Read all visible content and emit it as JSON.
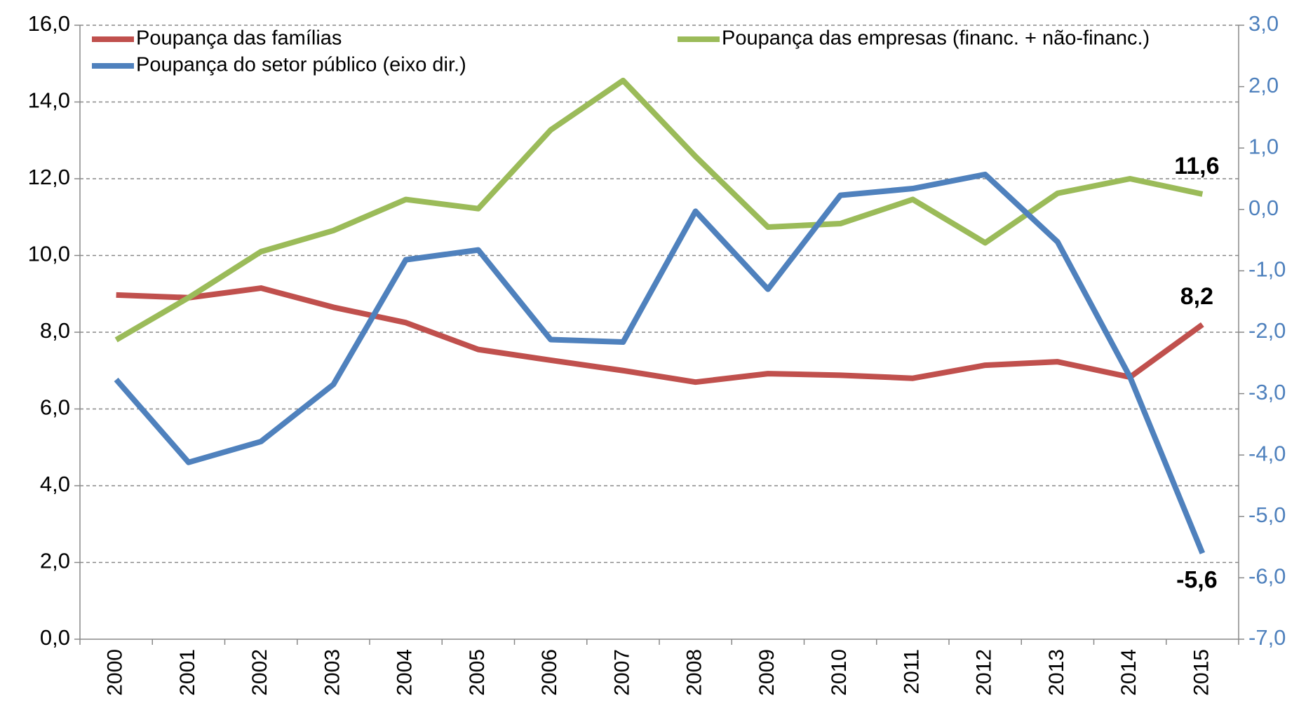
{
  "chart_data": {
    "type": "line",
    "categories": [
      "2000",
      "2001",
      "2002",
      "2003",
      "2004",
      "2005",
      "2006",
      "2007",
      "2008",
      "2009",
      "2010",
      "2011",
      "2012",
      "2013",
      "2014",
      "2015"
    ],
    "series": [
      {
        "name": "Poupança das famílias",
        "color": "#c0504d",
        "values": [
          8.97,
          8.9,
          9.15,
          8.65,
          8.25,
          7.55,
          7.27,
          7.0,
          6.7,
          6.92,
          6.88,
          6.8,
          7.14,
          7.23,
          6.83,
          8.2
        ],
        "value_labels": [
          null,
          null,
          null,
          null,
          null,
          null,
          null,
          null,
          null,
          null,
          null,
          null,
          null,
          null,
          null,
          "8,2"
        ]
      },
      {
        "name": "Poupança das empresas (financ. + não-financ.)",
        "color": "#9bbb59",
        "values": [
          7.8,
          8.9,
          10.1,
          10.65,
          11.46,
          11.22,
          13.27,
          14.56,
          12.58,
          10.74,
          10.83,
          11.46,
          10.33,
          11.62,
          12.0,
          11.6
        ],
        "value_labels": [
          null,
          null,
          null,
          null,
          null,
          null,
          null,
          null,
          null,
          null,
          null,
          null,
          null,
          null,
          null,
          "11,6"
        ]
      },
      {
        "name": "Poupança do setor público (eixo dir.)",
        "color": "#4f81bd",
        "axis": "y2",
        "values": [
          -2.77,
          -4.12,
          -3.78,
          -2.85,
          -0.82,
          -0.66,
          -2.12,
          -2.16,
          -0.03,
          -1.3,
          0.23,
          0.34,
          0.57,
          -0.53,
          -2.73,
          -5.6
        ],
        "value_labels": [
          null,
          null,
          null,
          null,
          null,
          null,
          null,
          null,
          null,
          null,
          null,
          null,
          null,
          null,
          null,
          "-5,6"
        ]
      }
    ],
    "ylim": [
      0,
      16
    ],
    "yticks": [
      {
        "value": 0,
        "label": "0,0"
      },
      {
        "value": 2,
        "label": "2,0"
      },
      {
        "value": 4,
        "label": "4,0"
      },
      {
        "value": 6,
        "label": "6,0"
      },
      {
        "value": 8,
        "label": "8,0"
      },
      {
        "value": 10,
        "label": "10,0"
      },
      {
        "value": 12,
        "label": "12,0"
      },
      {
        "value": 14,
        "label": "14,0"
      },
      {
        "value": 16,
        "label": "16,0"
      }
    ],
    "y2lim": [
      -7,
      3
    ],
    "y2ticks": [
      {
        "value": -7,
        "label": "-7,0"
      },
      {
        "value": -6,
        "label": "-6,0"
      },
      {
        "value": -5,
        "label": "-5,0"
      },
      {
        "value": -4,
        "label": "-4,0"
      },
      {
        "value": -3,
        "label": "-3,0"
      },
      {
        "value": -2,
        "label": "-2,0"
      },
      {
        "value": -1,
        "label": "-1,0"
      },
      {
        "value": 0,
        "label": "0,0"
      },
      {
        "value": 1,
        "label": "1,0"
      },
      {
        "value": 2,
        "label": "2,0"
      },
      {
        "value": 3,
        "label": "3,0"
      }
    ],
    "y2color": "#4f81bd",
    "grid": true
  }
}
